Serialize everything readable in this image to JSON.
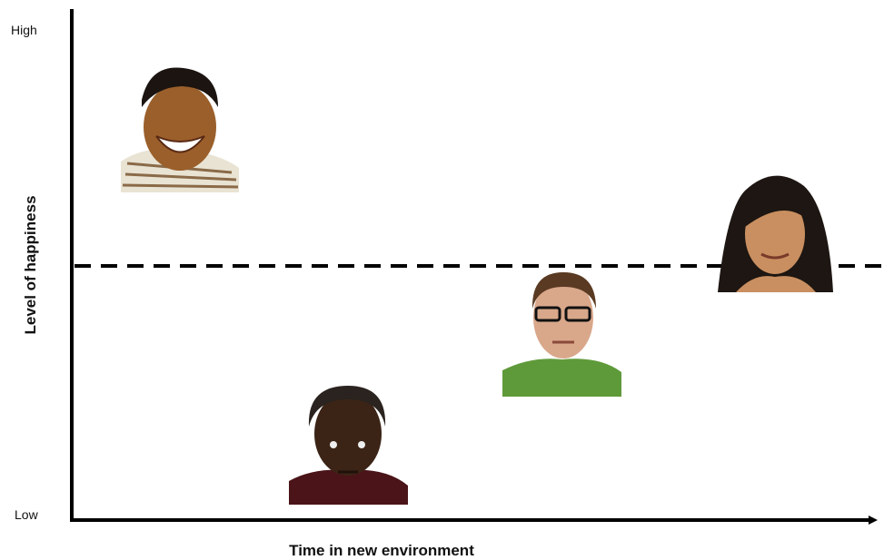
{
  "axes": {
    "y_high": "High",
    "y_low": "Low",
    "y_label": "Level of happiness",
    "x_label": "Time in new environment"
  }
}
